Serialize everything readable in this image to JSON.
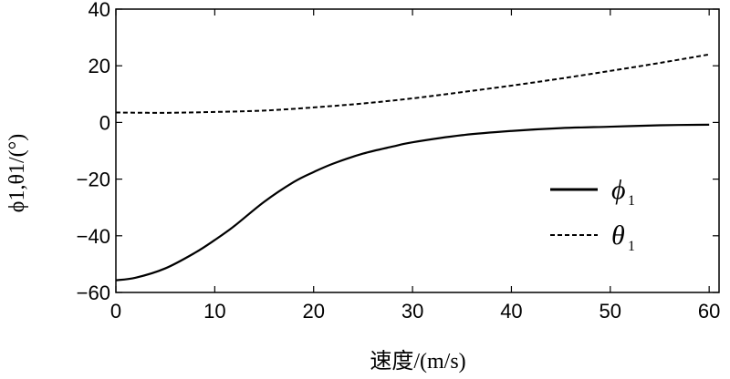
{
  "chart_data": {
    "type": "line",
    "xlabel": "速度/(m/s)",
    "ylabel": "ϕ1,θ1/(°)",
    "xlim": [
      0,
      61
    ],
    "ylim": [
      -60,
      40
    ],
    "xticks": [
      "0",
      "10",
      "20",
      "30",
      "40",
      "50",
      "60"
    ],
    "yticks": [
      "40",
      "20",
      "0",
      "−20",
      "−40",
      "−60"
    ],
    "grid": false,
    "legend_position": "right",
    "series": [
      {
        "name": "ϕ1",
        "symbol": "ϕ",
        "subscript": "1",
        "line_style": "solid",
        "color": "#000000",
        "x": [
          0,
          2,
          5,
          8,
          10,
          12,
          15,
          18,
          20,
          22,
          25,
          28,
          30,
          35,
          40,
          45,
          50,
          55,
          60
        ],
        "y": [
          -55.7,
          -54.8,
          -51.5,
          -46.0,
          -41.5,
          -36.5,
          -28.0,
          -21.0,
          -17.5,
          -14.5,
          -11.0,
          -8.5,
          -7.0,
          -4.5,
          -3.0,
          -2.0,
          -1.5,
          -1.0,
          -0.8
        ]
      },
      {
        "name": "θ1",
        "symbol": "θ",
        "subscript": "1",
        "line_style": "dashed",
        "color": "#000000",
        "x": [
          0,
          5,
          10,
          15,
          20,
          25,
          30,
          35,
          40,
          45,
          50,
          55,
          60
        ],
        "y": [
          3.5,
          3.4,
          3.7,
          4.2,
          5.3,
          6.7,
          8.5,
          10.7,
          13.0,
          15.5,
          18.2,
          21.0,
          24.0
        ]
      }
    ]
  }
}
